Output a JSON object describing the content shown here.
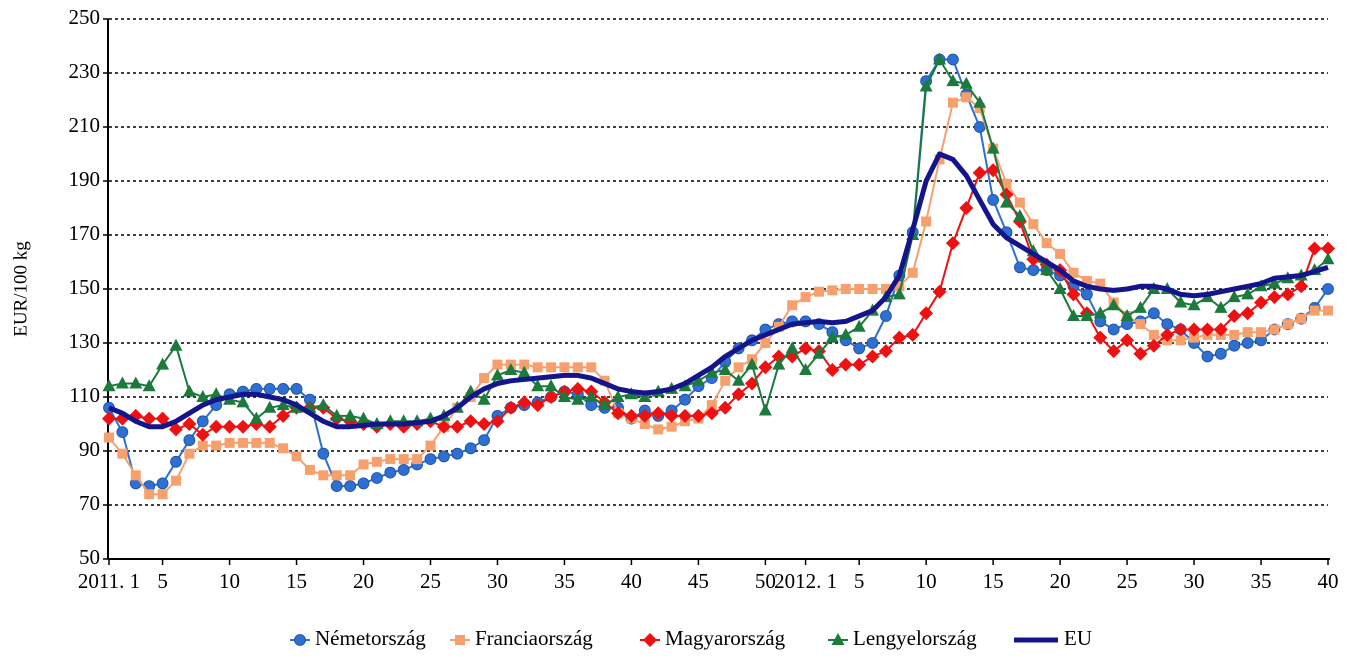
{
  "chart_data": {
    "type": "line",
    "y_axis_label": "EUR/100 kg",
    "categories": [
      "2011. 1",
      null,
      null,
      null,
      "5",
      null,
      null,
      null,
      null,
      "10",
      null,
      null,
      null,
      null,
      "15",
      null,
      null,
      null,
      null,
      "20",
      null,
      null,
      null,
      null,
      "25",
      null,
      null,
      null,
      null,
      "30",
      null,
      null,
      null,
      null,
      "35",
      null,
      null,
      null,
      null,
      "40",
      null,
      null,
      null,
      null,
      "45",
      null,
      null,
      null,
      null,
      "50",
      null,
      null,
      "2012. 1",
      null,
      null,
      null,
      "5",
      null,
      null,
      null,
      null,
      "10",
      null,
      null,
      null,
      null,
      "15",
      null,
      null,
      null,
      null,
      "20",
      null,
      null,
      null,
      null,
      "25",
      null,
      null,
      null,
      null,
      "30",
      null,
      null,
      null,
      null,
      "35",
      null,
      null,
      null,
      null,
      "40"
    ],
    "ylim": [
      50,
      250
    ],
    "yticks": [
      50,
      70,
      90,
      110,
      130,
      150,
      170,
      190,
      210,
      230,
      250
    ],
    "grid": true,
    "legend": "bottom",
    "series": [
      {
        "name": "Németország",
        "color": "#2e6fd1",
        "marker": "circle",
        "values": [
          106,
          97,
          78,
          77,
          78,
          86,
          94,
          101,
          107,
          111,
          112,
          113,
          113,
          113,
          113,
          109,
          89,
          77,
          77,
          78,
          80,
          82,
          83,
          85,
          87,
          88,
          89,
          91,
          94,
          103,
          106,
          107,
          108,
          110,
          112,
          111,
          107,
          106,
          106,
          102,
          105,
          103,
          105,
          109,
          114,
          117,
          123,
          128,
          131,
          135,
          137,
          138,
          138,
          137,
          134,
          131,
          128,
          130,
          140,
          155,
          171,
          227,
          235,
          235,
          222,
          210,
          183,
          171,
          158,
          157,
          157,
          155,
          151,
          148,
          138,
          135,
          137,
          138,
          141,
          137,
          135,
          130,
          125,
          126,
          129,
          130,
          131,
          135,
          137,
          139,
          143,
          150
        ]
      },
      {
        "name": "Franciaország",
        "color": "#f7a06e",
        "marker": "square",
        "values": [
          95,
          89,
          81,
          74,
          74,
          79,
          89,
          92,
          92,
          93,
          93,
          93,
          93,
          91,
          88,
          83,
          81,
          81,
          81,
          85,
          86,
          87,
          87,
          87,
          92,
          99,
          106,
          110,
          117,
          122,
          122,
          122,
          121,
          121,
          121,
          121,
          121,
          116,
          104,
          102,
          100,
          98,
          99,
          101,
          102,
          107,
          116,
          121,
          124,
          130,
          136,
          144,
          147,
          149,
          149.5,
          150,
          150,
          150,
          150,
          151,
          156,
          175,
          198,
          219,
          221,
          217,
          202,
          189,
          182,
          174,
          167,
          163,
          156,
          153,
          152,
          145,
          140,
          137,
          133,
          131,
          131,
          132,
          133,
          133,
          133,
          134,
          134,
          135,
          137,
          139,
          142,
          142
        ]
      },
      {
        "name": "Magyarország",
        "color": "#ee1111",
        "marker": "diamond",
        "values": [
          102,
          102,
          103,
          102,
          102,
          98,
          100,
          96,
          99,
          99,
          99,
          100,
          99,
          103,
          106,
          106,
          106,
          102,
          101,
          100,
          99,
          100,
          99,
          100,
          101,
          99,
          99,
          101,
          100,
          101,
          106,
          108,
          107,
          110,
          112,
          113,
          112,
          108,
          104,
          103,
          103,
          104,
          103,
          103,
          103,
          104,
          106,
          111,
          115,
          121,
          125,
          125,
          128,
          127,
          120,
          122,
          122,
          125,
          127,
          132,
          133,
          141,
          149,
          167,
          180,
          193,
          194,
          185,
          175,
          161,
          159,
          157,
          148,
          141,
          132,
          127,
          131,
          126,
          129,
          133,
          135,
          135,
          135,
          135,
          140,
          141,
          145,
          147,
          148,
          151,
          165,
          165
        ]
      },
      {
        "name": "Lengyelország",
        "color": "#1b7a3c",
        "marker": "triangle",
        "values": [
          114,
          115,
          115,
          114,
          122,
          129,
          112,
          110,
          111,
          109,
          108,
          102,
          106,
          107,
          106,
          106,
          107,
          103,
          103,
          102,
          100,
          101,
          101,
          101,
          102,
          103,
          106,
          112,
          109,
          118,
          120,
          119,
          114,
          114,
          110,
          109,
          110,
          107,
          110,
          111,
          110,
          112,
          113,
          114,
          116,
          119,
          120,
          116,
          122,
          105,
          122,
          128,
          120,
          126,
          132,
          133,
          136,
          142,
          147,
          148,
          170,
          225,
          235,
          227,
          226,
          219,
          202,
          182,
          177,
          164,
          157,
          150,
          140,
          140,
          141,
          144,
          140,
          143,
          150,
          150,
          145,
          144,
          147,
          143,
          147,
          148,
          151,
          152,
          154,
          155,
          157,
          161
        ]
      },
      {
        "name": "EU",
        "color": "#14148c",
        "marker": "none",
        "values": [
          106,
          104,
          101,
          99,
          99,
          101,
          104,
          107,
          109,
          110,
          111,
          111,
          110,
          109,
          107,
          104,
          101,
          99,
          99,
          99.5,
          100,
          100,
          100,
          100.5,
          101,
          103,
          106,
          110,
          113,
          115,
          116,
          116.5,
          117,
          117.5,
          118,
          118,
          117,
          115,
          113,
          112,
          111.5,
          112,
          113,
          115,
          118,
          121,
          125,
          128,
          131,
          133,
          135,
          137,
          137.5,
          138,
          137.5,
          138,
          140,
          142,
          147,
          155,
          172,
          190,
          200,
          198,
          192,
          183,
          174,
          169,
          166,
          163,
          160,
          157,
          153,
          151,
          150,
          149.5,
          150,
          151,
          151,
          150,
          148,
          147.5,
          148,
          149,
          150,
          151,
          152,
          154,
          154.5,
          155,
          156.5,
          158
        ]
      }
    ]
  }
}
